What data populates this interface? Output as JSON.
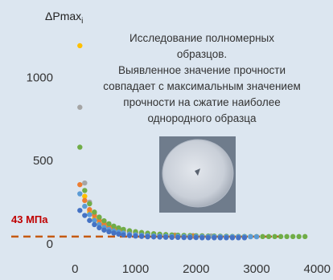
{
  "chart_data": {
    "type": "scatter",
    "ylabel": "ΔPmax",
    "ylabel_sub": "i",
    "xlim": [
      -150,
      4050
    ],
    "ylim": [
      -30,
      1320
    ],
    "x_ticks": [
      "0",
      "1000",
      "2000",
      "3000",
      "4000"
    ],
    "y_ticks": [
      "0",
      "500",
      "1000"
    ],
    "threshold": {
      "value": 43,
      "label": "43 МПа",
      "color": "#c55a11"
    },
    "annotation": [
      "Исследование полномерных",
      "образцов.",
      "Выявленное значение прочности",
      "совпадает с максимальным значением",
      "прочности на сжатие наиболее",
      "однородного образца"
    ],
    "series": [
      {
        "color": "#ffc000",
        "x": [
          80,
          160,
          240,
          320,
          400,
          480,
          560,
          640,
          720,
          800,
          900,
          1000,
          1100,
          1200,
          1300,
          1400,
          1500,
          1650,
          1800,
          1950
        ],
        "y": [
          1190,
          285,
          190,
          150,
          125,
          110,
          100,
          90,
          82,
          76,
          70,
          66,
          62,
          58,
          56,
          54,
          52,
          50,
          48,
          47
        ]
      },
      {
        "color": "#a5a5a5",
        "x": [
          80,
          160,
          240,
          320,
          400,
          480,
          560,
          640,
          720,
          800,
          900,
          1000,
          1100,
          1200,
          1300,
          1400,
          1500,
          1650,
          1800,
          1950,
          2100,
          2250
        ],
        "y": [
          820,
          365,
          250,
          185,
          155,
          130,
          115,
          102,
          92,
          85,
          78,
          72,
          67,
          63,
          60,
          57,
          54,
          52,
          50,
          49,
          48,
          47
        ]
      },
      {
        "color": "#ed7d31",
        "x": [
          80,
          160,
          240,
          320,
          400,
          480,
          560,
          640,
          720,
          800,
          900,
          1000,
          1100,
          1200,
          1300,
          1400,
          1500,
          1650,
          1800,
          1950,
          2100
        ],
        "y": [
          355,
          260,
          205,
          170,
          140,
          120,
          105,
          94,
          86,
          79,
          72,
          67,
          62,
          58,
          55,
          53,
          51,
          49,
          47,
          46,
          45
        ]
      },
      {
        "color": "#70ad47",
        "x": [
          80,
          160,
          240,
          320,
          400,
          480,
          560,
          640,
          720,
          800,
          900,
          1000,
          1100,
          1200,
          1300,
          1400,
          1500,
          1600,
          1700,
          1800,
          1900,
          2000,
          2100,
          2200,
          2300,
          2400,
          2500,
          2600,
          2700,
          2800,
          2900,
          3000,
          3100,
          3200,
          3300,
          3400,
          3500,
          3600,
          3700,
          3800
        ],
        "y": [
          580,
          320,
          240,
          190,
          160,
          138,
          120,
          106,
          95,
          86,
          78,
          72,
          67,
          63,
          60,
          57,
          55,
          53,
          51,
          50,
          49,
          48,
          47,
          46,
          46,
          45,
          45,
          44,
          44,
          44,
          43,
          43,
          43,
          43,
          43,
          43,
          43,
          43,
          43,
          43
        ]
      },
      {
        "color": "#5b9bd5",
        "x": [
          80,
          160,
          240,
          320,
          400,
          480,
          560,
          640,
          720,
          800,
          900,
          1000,
          1100,
          1200,
          1300,
          1400,
          1500,
          1600,
          1700,
          1800,
          1900,
          2000,
          2100,
          2200,
          2300,
          2400,
          2500,
          2600,
          2700,
          2800,
          2900,
          3000
        ],
        "y": [
          300,
          225,
          175,
          140,
          115,
          98,
          86,
          77,
          70,
          64,
          58,
          54,
          51,
          49,
          47,
          46,
          45,
          44,
          44,
          43,
          43,
          43,
          42,
          42,
          42,
          42,
          42,
          42,
          42,
          42,
          42,
          42
        ]
      },
      {
        "color": "#4472c4",
        "x": [
          80,
          160,
          240,
          320,
          400,
          480,
          560,
          640,
          720,
          800,
          900,
          1000,
          1100,
          1200,
          1300,
          1400,
          1500,
          1600,
          1700,
          1800,
          1900,
          2000,
          2100,
          2200,
          2300,
          2400,
          2500,
          2600,
          2700,
          2800
        ],
        "y": [
          200,
          170,
          140,
          115,
          96,
          82,
          72,
          64,
          58,
          53,
          49,
          46,
          44,
          42,
          41,
          40,
          39,
          38,
          38,
          37,
          37,
          37,
          36,
          36,
          36,
          36,
          36,
          36,
          36,
          36
        ]
      }
    ]
  }
}
